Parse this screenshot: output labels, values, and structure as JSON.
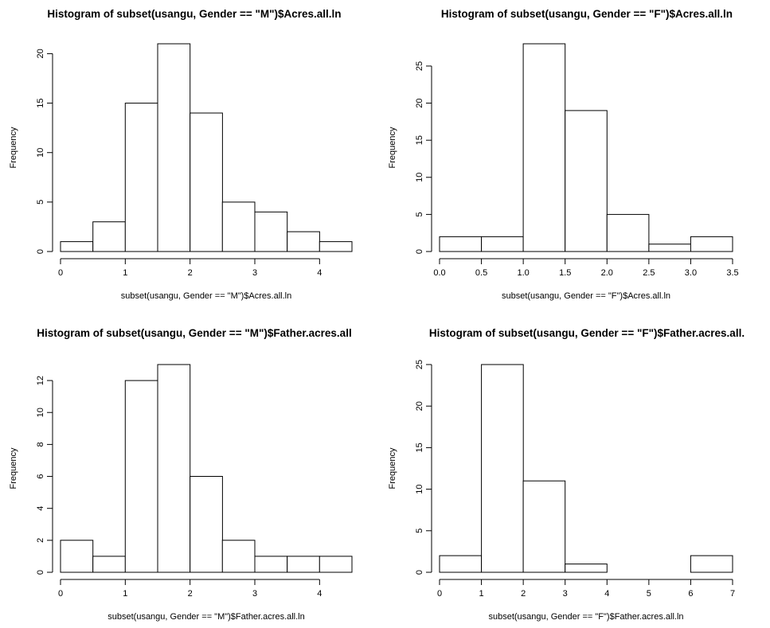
{
  "chart_data": [
    {
      "type": "bar",
      "title": "Histogram of subset(usangu, Gender == \"M\")$Acres.all.ln",
      "xlabel": "subset(usangu, Gender == \"M\")$Acres.all.ln",
      "ylabel": "Frequency",
      "breaks": [
        0,
        0.5,
        1,
        1.5,
        2,
        2.5,
        3,
        3.5,
        4,
        4.5
      ],
      "values": [
        1,
        3,
        15,
        21,
        14,
        5,
        4,
        2,
        1
      ],
      "xticks": [
        0,
        1,
        2,
        3,
        4
      ],
      "xtick_labels": [
        "0",
        "1",
        "2",
        "3",
        "4"
      ],
      "yticks": [
        0,
        5,
        10,
        15,
        20
      ],
      "ytick_labels": [
        "0",
        "5",
        "10",
        "15",
        "20"
      ],
      "xlim": [
        0,
        4.5
      ],
      "ylim": [
        0,
        21
      ],
      "grid": false
    },
    {
      "type": "bar",
      "title": "Histogram of subset(usangu, Gender == \"F\")$Acres.all.ln",
      "xlabel": "subset(usangu, Gender == \"F\")$Acres.all.ln",
      "ylabel": "Frequency",
      "breaks": [
        0,
        0.5,
        1,
        1.5,
        2,
        2.5,
        3,
        3.5
      ],
      "values": [
        2,
        2,
        28,
        19,
        5,
        1,
        2
      ],
      "xticks": [
        0,
        0.5,
        1,
        1.5,
        2,
        2.5,
        3,
        3.5
      ],
      "xtick_labels": [
        "0.0",
        "0.5",
        "1.0",
        "1.5",
        "2.0",
        "2.5",
        "3.0",
        "3.5"
      ],
      "yticks": [
        0,
        5,
        10,
        15,
        20,
        25
      ],
      "ytick_labels": [
        "0",
        "5",
        "10",
        "15",
        "20",
        "25"
      ],
      "xlim": [
        0,
        3.5
      ],
      "ylim": [
        0,
        28
      ],
      "grid": false
    },
    {
      "type": "bar",
      "title": "Histogram of subset(usangu, Gender == \"M\")$Father.acres.all",
      "xlabel": "subset(usangu, Gender == \"M\")$Father.acres.all.ln",
      "ylabel": "Frequency",
      "breaks": [
        0,
        0.5,
        1,
        1.5,
        2,
        2.5,
        3,
        3.5,
        4,
        4.5
      ],
      "values": [
        2,
        1,
        12,
        13,
        6,
        2,
        1,
        1,
        1
      ],
      "xticks": [
        0,
        1,
        2,
        3,
        4
      ],
      "xtick_labels": [
        "0",
        "1",
        "2",
        "3",
        "4"
      ],
      "yticks": [
        0,
        2,
        4,
        6,
        8,
        10,
        12
      ],
      "ytick_labels": [
        "0",
        "2",
        "4",
        "6",
        "8",
        "10",
        "12"
      ],
      "xlim": [
        0,
        4.5
      ],
      "ylim": [
        0,
        13
      ],
      "grid": false
    },
    {
      "type": "bar",
      "title": "Histogram of subset(usangu, Gender == \"F\")$Father.acres.all.",
      "xlabel": "subset(usangu, Gender == \"F\")$Father.acres.all.ln",
      "ylabel": "Frequency",
      "breaks": [
        0,
        1,
        2,
        3,
        4,
        5,
        6,
        7
      ],
      "values": [
        2,
        25,
        11,
        1,
        0,
        0,
        2
      ],
      "xticks": [
        0,
        1,
        2,
        3,
        4,
        5,
        6,
        7
      ],
      "xtick_labels": [
        "0",
        "1",
        "2",
        "3",
        "4",
        "5",
        "6",
        "7"
      ],
      "yticks": [
        0,
        5,
        10,
        15,
        20,
        25
      ],
      "ytick_labels": [
        "0",
        "5",
        "10",
        "15",
        "20",
        "25"
      ],
      "xlim": [
        0,
        7
      ],
      "ylim": [
        0,
        25
      ],
      "grid": false
    }
  ]
}
